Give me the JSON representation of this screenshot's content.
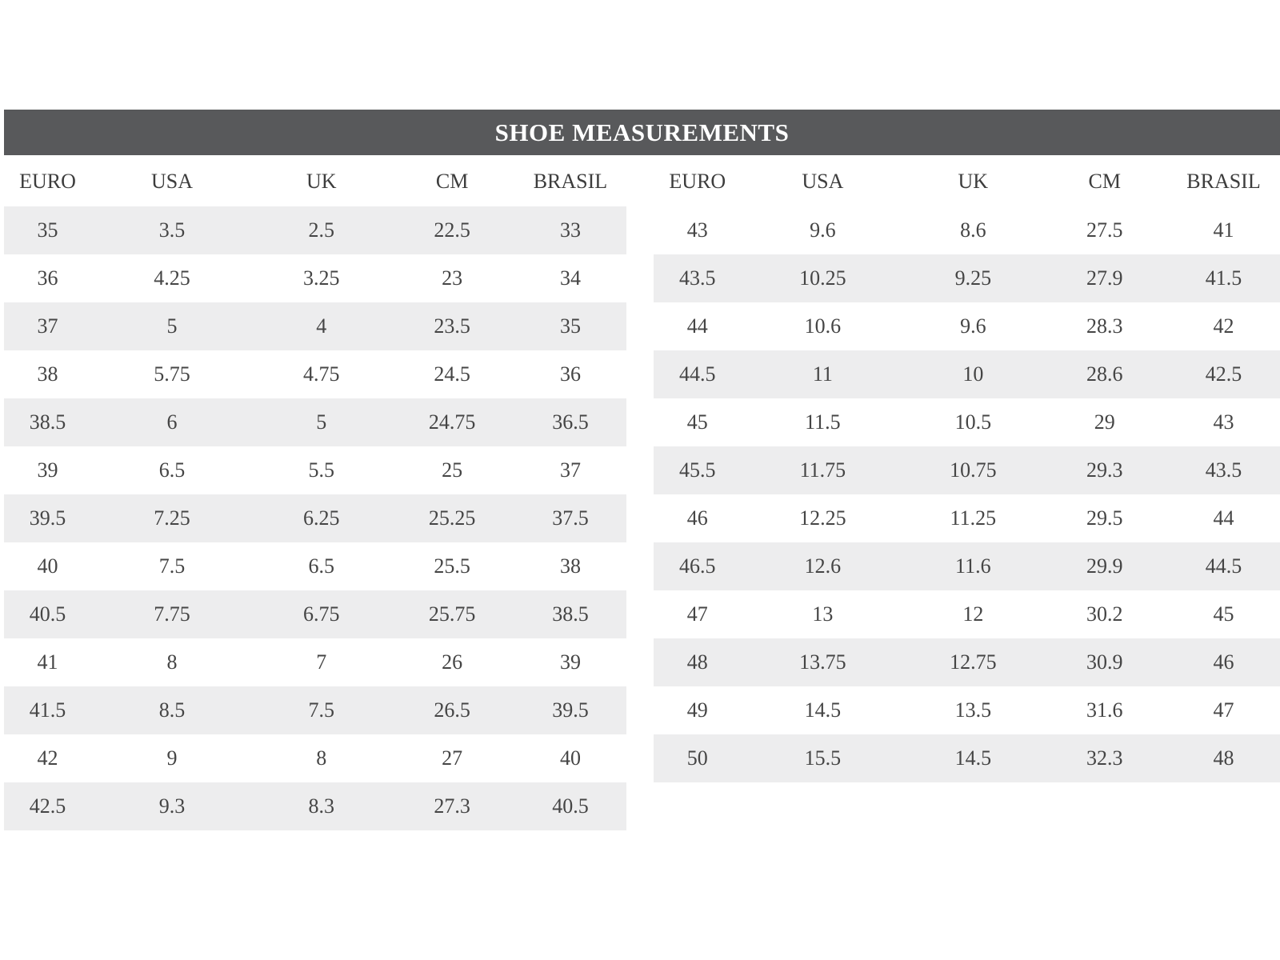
{
  "title": "SHOE MEASUREMENTS",
  "chart_data": [
    {
      "type": "table",
      "name": "left-size-table",
      "columns": [
        "EURO",
        "USA",
        "UK",
        "CM",
        "BRASIL"
      ],
      "rows": [
        [
          "35",
          "3.5",
          "2.5",
          "22.5",
          "33"
        ],
        [
          "36",
          "4.25",
          "3.25",
          "23",
          "34"
        ],
        [
          "37",
          "5",
          "4",
          "23.5",
          "35"
        ],
        [
          "38",
          "5.75",
          "4.75",
          "24.5",
          "36"
        ],
        [
          "38.5",
          "6",
          "5",
          "24.75",
          "36.5"
        ],
        [
          "39",
          "6.5",
          "5.5",
          "25",
          "37"
        ],
        [
          "39.5",
          "7.25",
          "6.25",
          "25.25",
          "37.5"
        ],
        [
          "40",
          "7.5",
          "6.5",
          "25.5",
          "38"
        ],
        [
          "40.5",
          "7.75",
          "6.75",
          "25.75",
          "38.5"
        ],
        [
          "41",
          "8",
          "7",
          "26",
          "39"
        ],
        [
          "41.5",
          "8.5",
          "7.5",
          "26.5",
          "39.5"
        ],
        [
          "42",
          "9",
          "8",
          "27",
          "40"
        ],
        [
          "42.5",
          "9.3",
          "8.3",
          "27.3",
          "40.5"
        ]
      ]
    },
    {
      "type": "table",
      "name": "right-size-table",
      "columns": [
        "EURO",
        "USA",
        "UK",
        "CM",
        "BRASIL"
      ],
      "rows": [
        [
          "43",
          "9.6",
          "8.6",
          "27.5",
          "41"
        ],
        [
          "43.5",
          "10.25",
          "9.25",
          "27.9",
          "41.5"
        ],
        [
          "44",
          "10.6",
          "9.6",
          "28.3",
          "42"
        ],
        [
          "44.5",
          "11",
          "10",
          "28.6",
          "42.5"
        ],
        [
          "45",
          "11.5",
          "10.5",
          "29",
          "43"
        ],
        [
          "45.5",
          "11.75",
          "10.75",
          "29.3",
          "43.5"
        ],
        [
          "46",
          "12.25",
          "11.25",
          "29.5",
          "44"
        ],
        [
          "46.5",
          "12.6",
          "11.6",
          "29.9",
          "44.5"
        ],
        [
          "47",
          "13",
          "12",
          "30.2",
          "45"
        ],
        [
          "48",
          "13.75",
          "12.75",
          "30.9",
          "46"
        ],
        [
          "49",
          "14.5",
          "13.5",
          "31.6",
          "47"
        ],
        [
          "50",
          "15.5",
          "14.5",
          "32.3",
          "48"
        ]
      ]
    }
  ],
  "colors": {
    "header_bar": "#58595b",
    "title_text": "#ffffff",
    "row_shade": "#ededee",
    "text": "#454545",
    "background": "#ffffff"
  }
}
